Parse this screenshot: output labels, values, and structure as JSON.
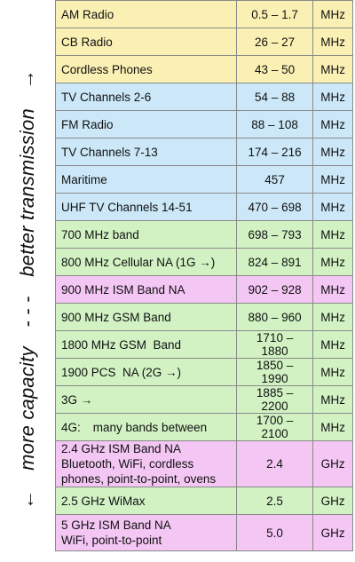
{
  "side_label": {
    "top_arrow": "→",
    "top_text": "better transmission",
    "dashes": "- - -",
    "bottom_text": "more capacity",
    "bottom_arrow": "←"
  },
  "colors": {
    "yellow": "#faf0b4",
    "blue": "#cce8f8",
    "green": "#d2f2c4",
    "pink": "#f4c6f4"
  },
  "rows": [
    {
      "name": "AM Radio",
      "range": "0.5 – 1.7",
      "unit": "MHz",
      "color": "#faf0b4"
    },
    {
      "name": "CB Radio",
      "range": "26 – 27",
      "unit": "MHz",
      "color": "#faf0b4"
    },
    {
      "name": "Cordless Phones",
      "range": "43 – 50",
      "unit": "MHz",
      "color": "#faf0b4"
    },
    {
      "name": "TV Channels 2-6",
      "range": "54 – 88",
      "unit": "MHz",
      "color": "#cce8f8"
    },
    {
      "name": "FM Radio",
      "range": "88 – 108",
      "unit": "MHz",
      "color": "#cce8f8"
    },
    {
      "name": "TV Channels 7-13",
      "range": "174 – 216",
      "unit": "MHz",
      "color": "#cce8f8"
    },
    {
      "name": "Maritime",
      "range": "457",
      "unit": "MHz",
      "color": "#cce8f8"
    },
    {
      "name": "UHF TV Channels 14-51",
      "range": "470 – 698",
      "unit": "MHz",
      "color": "#cce8f8"
    },
    {
      "name": "700 MHz band",
      "range": "698 – 793",
      "unit": "MHz",
      "color": "#d2f2c4"
    },
    {
      "name": "800 MHz Cellular NA (1G →)",
      "range": "824 – 891",
      "unit": "MHz",
      "color": "#d2f2c4"
    },
    {
      "name": "900 MHz ISM Band NA",
      "range": "902 – 928",
      "unit": "MHz",
      "color": "#f4c6f4"
    },
    {
      "name": "900 MHz GSM Band",
      "range": "880 – 960",
      "unit": "MHz",
      "color": "#d2f2c4"
    },
    {
      "name": "1800 MHz GSM  Band",
      "range": "1710 – 1880",
      "unit": "MHz",
      "color": "#d2f2c4"
    },
    {
      "name": "1900 PCS  NA (2G →)",
      "range": "1850 – 1990",
      "unit": "MHz",
      "color": "#d2f2c4"
    },
    {
      "name": "3G →",
      "range": "1885 – 2200",
      "unit": "MHz",
      "color": "#d2f2c4"
    },
    {
      "name": "4G:",
      "name_extra": "many bands between",
      "range": "1700 – 2100",
      "unit": "MHz",
      "color": "#d2f2c4"
    },
    {
      "name_lines": [
        "2.4 GHz ISM Band NA",
        "Bluetooth, WiFi, cordless",
        "phones, point-to-point, ovens"
      ],
      "range": "2.4",
      "unit": "GHz",
      "color": "#f4c6f4",
      "size": "tall"
    },
    {
      "name": "2.5 GHz WiMax",
      "range": "2.5",
      "unit": "GHz",
      "color": "#d2f2c4"
    },
    {
      "name_lines": [
        "5 GHz ISM Band NA",
        "WiFi, point-to-point"
      ],
      "range": "5.0",
      "unit": "GHz",
      "color": "#f4c6f4",
      "size": "mid"
    }
  ]
}
